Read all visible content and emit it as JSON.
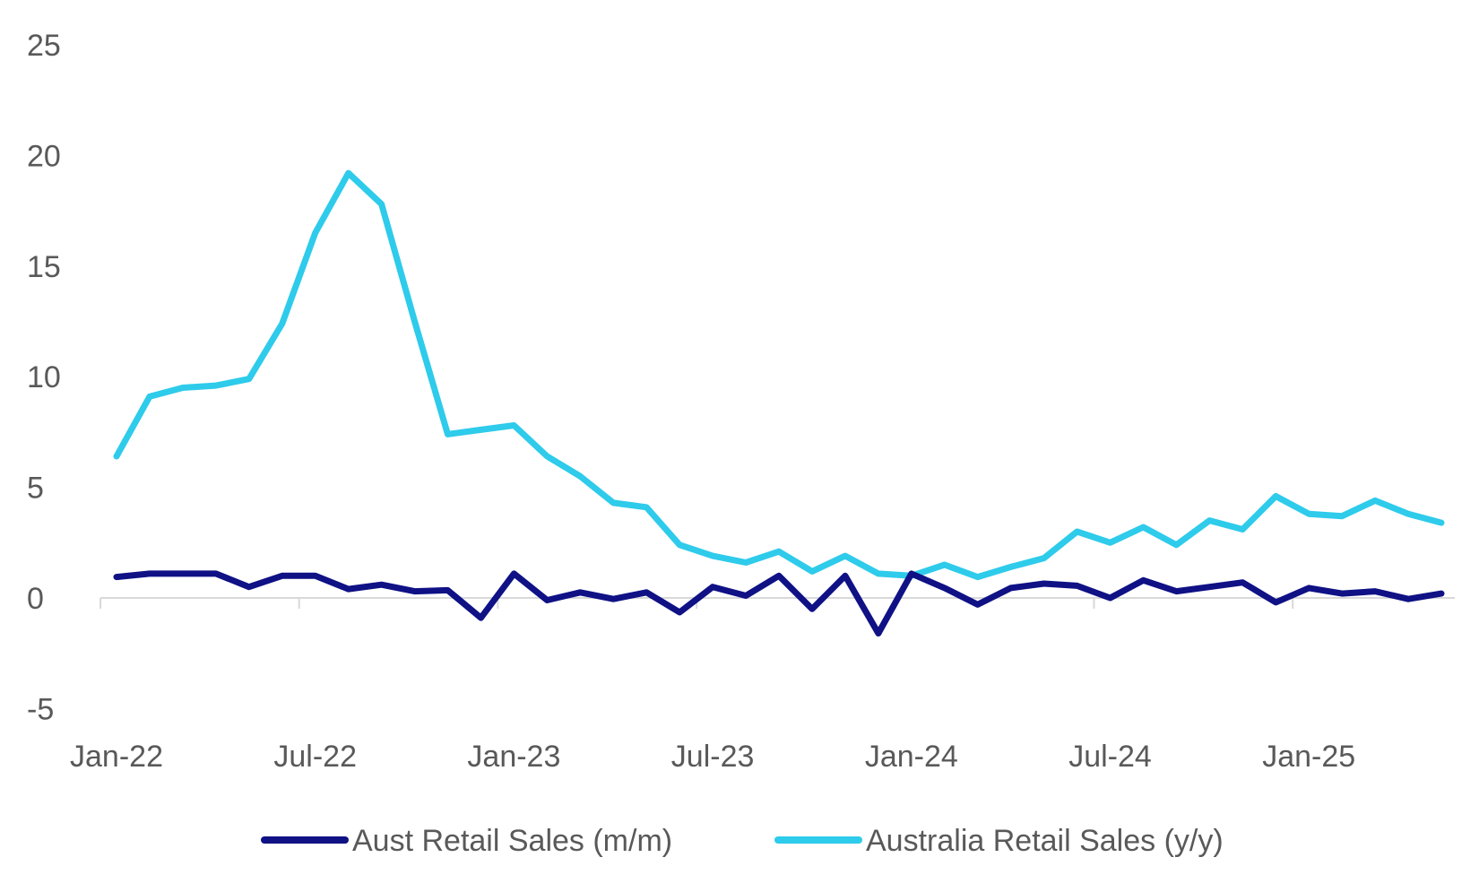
{
  "chart_data": {
    "type": "line",
    "title": "",
    "xlabel": "",
    "ylabel": "",
    "ylim": [
      -5,
      25
    ],
    "yticks": [
      -5,
      0,
      5,
      10,
      15,
      20,
      25
    ],
    "xtick_labels": [
      "Jan-22",
      "Jul-22",
      "Jan-23",
      "Jul-23",
      "Jan-24",
      "Jul-24",
      "Jan-25"
    ],
    "x_start": "Jan-22",
    "x_end": "May-25",
    "grid": false,
    "legend_position": "bottom",
    "series": [
      {
        "name": "Aust Retail Sales (m/m)",
        "color": "#0f1185",
        "values": [
          0.95,
          1.1,
          1.1,
          1.1,
          0.5,
          1.0,
          1.0,
          0.4,
          0.6,
          0.3,
          0.35,
          -0.9,
          1.1,
          -0.1,
          0.25,
          -0.05,
          0.25,
          -0.65,
          0.5,
          0.1,
          1.0,
          -0.5,
          1.0,
          -1.6,
          1.1,
          0.45,
          -0.3,
          0.45,
          0.65,
          0.55,
          0.0,
          0.8,
          0.3,
          0.5,
          0.7,
          -0.2,
          0.45,
          0.2,
          0.3,
          -0.05,
          0.2
        ]
      },
      {
        "name": "Australia Retail Sales (y/y)",
        "color": "#2ecbeb",
        "values": [
          6.4,
          9.1,
          9.5,
          9.6,
          9.9,
          12.4,
          16.5,
          19.2,
          17.8,
          12.5,
          7.4,
          7.6,
          7.8,
          6.4,
          5.5,
          4.3,
          4.1,
          2.4,
          1.9,
          1.6,
          2.1,
          1.2,
          1.9,
          1.1,
          1.0,
          1.5,
          0.95,
          1.4,
          1.8,
          3.0,
          2.5,
          3.2,
          2.4,
          3.5,
          3.1,
          4.6,
          3.8,
          3.7,
          4.4,
          3.8,
          3.4
        ]
      }
    ]
  }
}
